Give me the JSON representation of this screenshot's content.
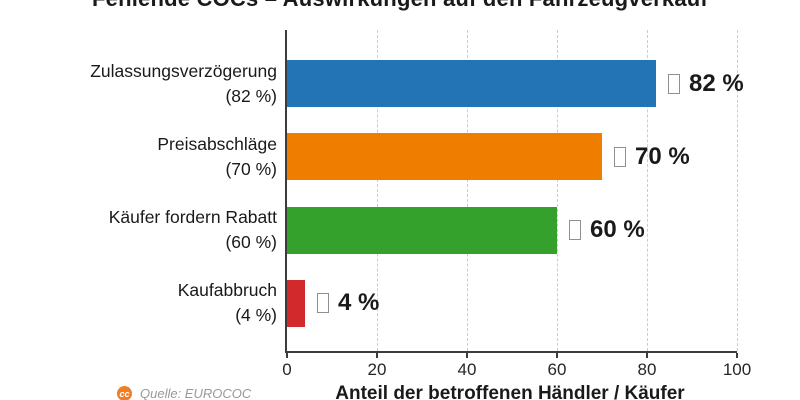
{
  "title": "Fehlende COCs – Auswirkungen auf den Fahrzeugverkauf",
  "chart_data": {
    "type": "bar",
    "orientation": "horizontal",
    "title": "Fehlende COCs – Auswirkungen auf den Fahrzeugverkauf",
    "xlabel": "Anteil der betroffenen Händler / Käufer",
    "ylabel": "",
    "xlim": [
      0,
      100
    ],
    "xticks": [
      0,
      20,
      40,
      60,
      80,
      100
    ],
    "grid": "vertical-dashed",
    "legend": "none",
    "categories": [
      "Zulassungsverzögerung",
      "Preisabschläge",
      "Käufer fordern Rabatt",
      "Kaufabbruch"
    ],
    "category_sublabels": [
      "(82 %)",
      "(70 %)",
      "(60 %)",
      "(4 %)"
    ],
    "values": [
      82,
      70,
      60,
      4
    ],
    "value_labels": [
      "82 %",
      "70 %",
      "60 %",
      "4 %"
    ],
    "bar_colors": [
      "#2374B4",
      "#EE7D00",
      "#33A12C",
      "#D2292D"
    ]
  },
  "source": {
    "text": "Quelle: EUROCOC"
  },
  "icons": {
    "value_prefix": "missing-glyph-box",
    "source_logo": "eurococ-logo"
  },
  "colors": {
    "bar_blue": "#2374B4",
    "bar_orange": "#EE7D00",
    "bar_green": "#33A12C",
    "bar_red": "#D2292D",
    "grid": "#CCCCCC",
    "axis": "#3C3C3C",
    "text": "#1A1A1A",
    "source_text": "#999999",
    "logo_orange": "#F07E26"
  }
}
